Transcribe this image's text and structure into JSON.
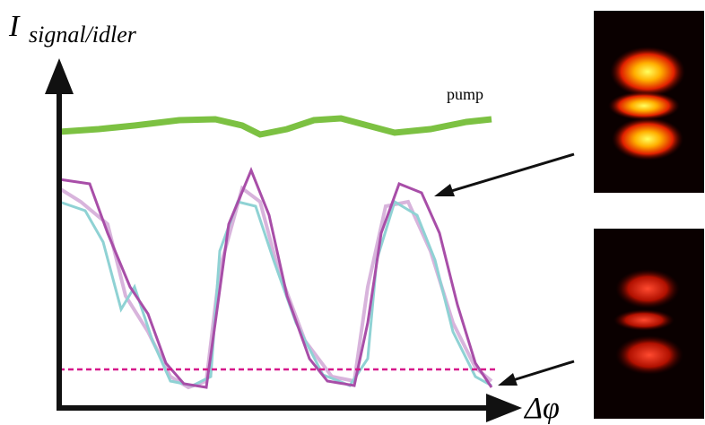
{
  "labels": {
    "y_axis": {
      "symbol": "I",
      "subscript": "signal/idler"
    },
    "x_axis": "Δφ",
    "pump": "pump"
  }
}
